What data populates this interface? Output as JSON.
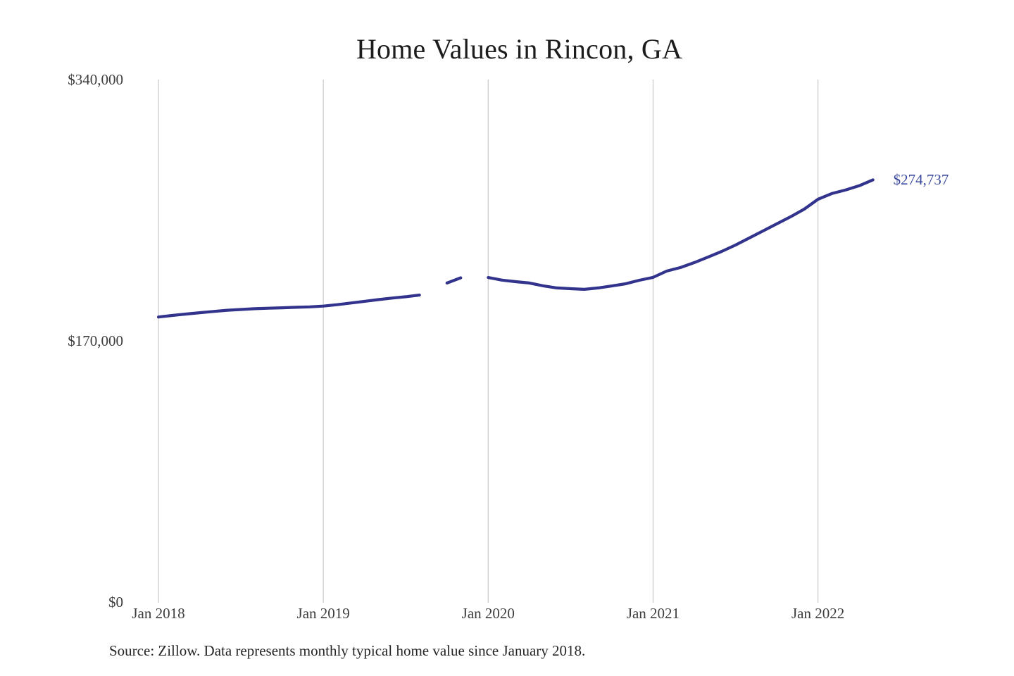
{
  "chart_data": {
    "type": "line",
    "title": "Home Values in Rincon, GA",
    "source_note": "Source: Zillow. Data represents monthly typical home value since January 2018.",
    "end_label": "$274,737",
    "x_tick_labels": [
      "Jan 2018",
      "Jan 2019",
      "Jan 2020",
      "Jan 2021",
      "Jan 2022"
    ],
    "x_tick_month_indices": [
      0,
      12,
      24,
      36,
      48
    ],
    "y_tick_labels": [
      "$340,000",
      "$170,000",
      "$0"
    ],
    "y_tick_values": [
      340000,
      170000,
      0
    ],
    "ylim": [
      0,
      340000
    ],
    "grid": "vertical-only",
    "legend": "none",
    "months": [
      "Jan 2018",
      "Feb 2018",
      "Mar 2018",
      "Apr 2018",
      "May 2018",
      "Jun 2018",
      "Jul 2018",
      "Aug 2018",
      "Sep 2018",
      "Oct 2018",
      "Nov 2018",
      "Dec 2018",
      "Jan 2019",
      "Feb 2019",
      "Mar 2019",
      "Apr 2019",
      "May 2019",
      "Jun 2019",
      "Jul 2019",
      "Aug 2019",
      "Sep 2019",
      "Oct 2019",
      "Nov 2019",
      "Dec 2019",
      "Jan 2020",
      "Feb 2020",
      "Mar 2020",
      "Apr 2020",
      "May 2020",
      "Jun 2020",
      "Jul 2020",
      "Aug 2020",
      "Sep 2020",
      "Oct 2020",
      "Nov 2020",
      "Dec 2020",
      "Jan 2021",
      "Feb 2021",
      "Mar 2021",
      "Apr 2021",
      "May 2021",
      "Jun 2021",
      "Jul 2021",
      "Aug 2021",
      "Sep 2021",
      "Oct 2021",
      "Nov 2021",
      "Dec 2021",
      "Jan 2022",
      "Feb 2022",
      "Mar 2022",
      "Apr 2022",
      "May 2022"
    ],
    "values": [
      185500,
      186500,
      187400,
      188300,
      189100,
      189900,
      190400,
      190900,
      191200,
      191500,
      191800,
      192100,
      192600,
      193500,
      194600,
      195700,
      196800,
      197800,
      198700,
      199800,
      null,
      207600,
      211000,
      null,
      211200,
      209500,
      208500,
      207600,
      205800,
      204400,
      203900,
      203500,
      204400,
      205700,
      207100,
      209400,
      211300,
      215400,
      217700,
      220900,
      224500,
      228200,
      232300,
      236900,
      241500,
      246100,
      250700,
      255700,
      262100,
      265800,
      268100,
      270900,
      274737
    ],
    "colors": {
      "line": "#32338c",
      "end_label": "#3b4a9d",
      "grid": "#c9c9c9",
      "tick_text": "#3d3d3d",
      "title_text": "#1c1c1c",
      "background": "#ffffff"
    }
  }
}
